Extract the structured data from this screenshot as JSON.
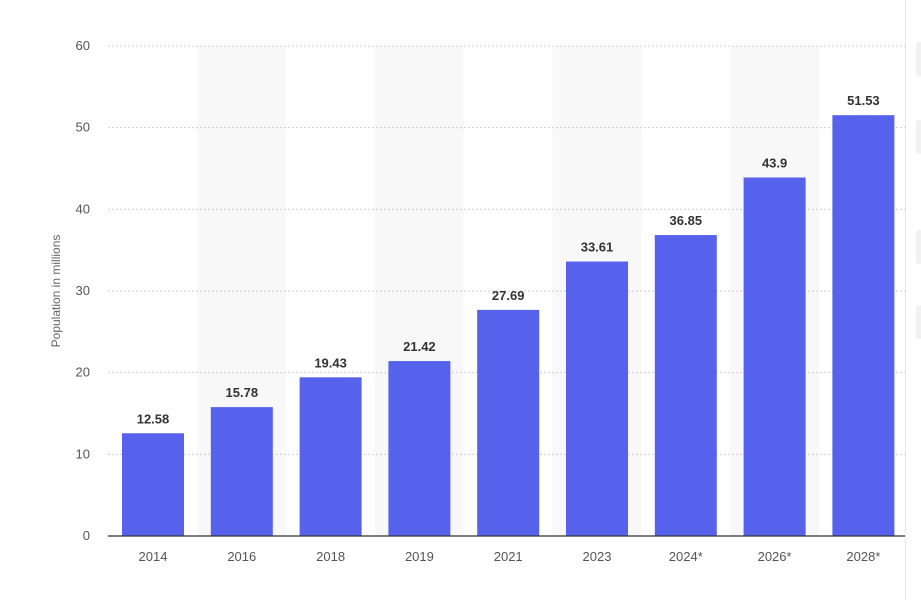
{
  "chart_data": {
    "type": "bar",
    "title": "",
    "xlabel": "",
    "ylabel": "Population in millions",
    "categories": [
      "2014",
      "2016",
      "2018",
      "2019",
      "2021",
      "2023",
      "2024*",
      "2026*",
      "2028*"
    ],
    "values": [
      12.58,
      15.78,
      19.43,
      21.42,
      27.69,
      33.61,
      36.85,
      43.9,
      51.53
    ],
    "data_labels": [
      "12.58",
      "15.78",
      "19.43",
      "21.42",
      "27.69",
      "33.61",
      "36.85",
      "43.9",
      "51.53"
    ],
    "ylim": [
      0,
      60
    ],
    "yticks": [
      0,
      10,
      20,
      30,
      40,
      50,
      60
    ],
    "grid": true,
    "legend": "none",
    "bar_color": "#5661ec",
    "band_color": "#f8f8f8"
  }
}
